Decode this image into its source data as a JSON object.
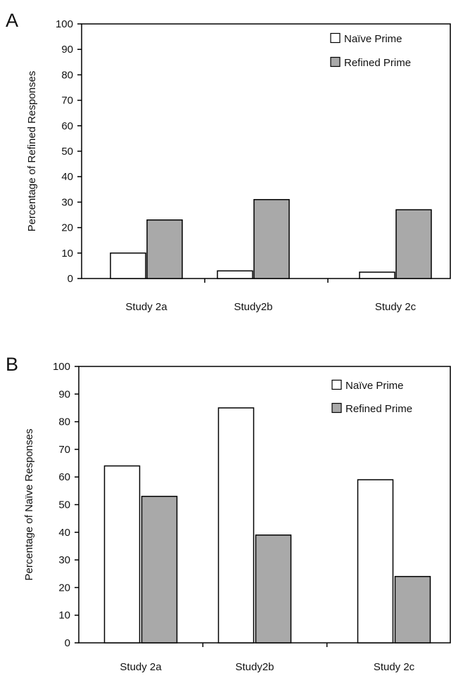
{
  "chart_data": [
    {
      "panel_label": "A",
      "type": "bar",
      "categories": [
        "Study 2a",
        "Study2b",
        "Study 2c"
      ],
      "series": [
        {
          "name": "Naïve Prime",
          "values": [
            10,
            3,
            2.5
          ]
        },
        {
          "name": "Refined Prime",
          "values": [
            23,
            31,
            27
          ]
        }
      ],
      "xlabel": "",
      "ylabel": "Percentage of Refined Responses",
      "ylim": [
        0,
        100
      ],
      "yticks": [
        0,
        10,
        20,
        30,
        40,
        50,
        60,
        70,
        80,
        90,
        100
      ],
      "grid": false,
      "legend_position": "top-right",
      "colors": {
        "Naïve Prime": "#ffffff",
        "Refined Prime": "#a9a9a9"
      }
    },
    {
      "panel_label": "B",
      "type": "bar",
      "categories": [
        "Study 2a",
        "Study2b",
        "Study 2c"
      ],
      "series": [
        {
          "name": "Naïve Prime",
          "values": [
            64,
            85,
            59
          ]
        },
        {
          "name": "Refined Prime",
          "values": [
            53,
            39,
            24
          ]
        }
      ],
      "xlabel": "",
      "ylabel": "Percentage of Naïve Responses",
      "ylim": [
        0,
        100
      ],
      "yticks": [
        0,
        10,
        20,
        30,
        40,
        50,
        60,
        70,
        80,
        90,
        100
      ],
      "grid": false,
      "legend_position": "top-right",
      "colors": {
        "Naïve Prime": "#ffffff",
        "Refined Prime": "#a9a9a9"
      }
    }
  ]
}
